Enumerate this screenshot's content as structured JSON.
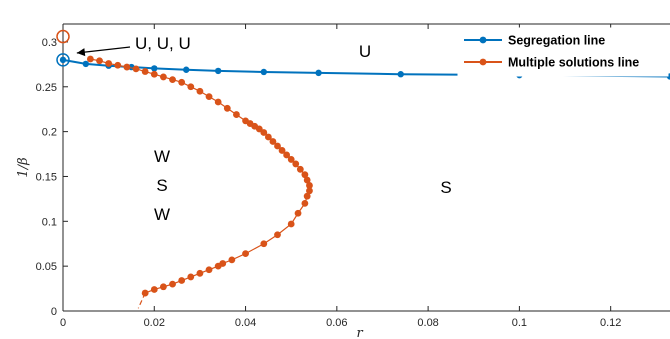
{
  "chart_data": {
    "type": "scatter",
    "xlabel": "r",
    "ylabel": "1/β",
    "xlim": [
      0,
      0.133
    ],
    "ylim": [
      0,
      0.32
    ],
    "x_ticks": [
      0,
      0.02,
      0.04,
      0.06,
      0.08,
      0.1,
      0.12
    ],
    "x_tick_labels": [
      "0",
      "0.02",
      "0.04",
      "0.06",
      "0.08",
      "0.1",
      "0.12"
    ],
    "y_ticks": [
      0,
      0.05,
      0.1,
      0.15,
      0.2,
      0.25,
      0.3
    ],
    "y_tick_labels": [
      "0",
      "0.05",
      "0.1",
      "0.15",
      "0.2",
      "0.25",
      "0.3"
    ],
    "grid": false,
    "legend_position": "top-right",
    "series": [
      {
        "name": "Segregation line",
        "color": "#0072BD",
        "marker": "circle",
        "x": [
          0,
          0.005,
          0.01,
          0.015,
          0.02,
          0.027,
          0.034,
          0.044,
          0.056,
          0.074,
          0.1,
          0.133
        ],
        "y": [
          0.28,
          0.2755,
          0.2735,
          0.272,
          0.2705,
          0.269,
          0.2677,
          0.2665,
          0.2655,
          0.264,
          0.263,
          0.2615
        ]
      },
      {
        "name": "Multiple solutions line",
        "color": "#D95319",
        "marker": "circle",
        "x": [
          0.006,
          0.008,
          0.01,
          0.012,
          0.014,
          0.016,
          0.018,
          0.02,
          0.022,
          0.024,
          0.026,
          0.028,
          0.03,
          0.032,
          0.034,
          0.036,
          0.038,
          0.04,
          0.041,
          0.042,
          0.043,
          0.044,
          0.045,
          0.046,
          0.047,
          0.048,
          0.049,
          0.05,
          0.051,
          0.052,
          0.053,
          0.0535,
          0.054,
          0.054,
          0.0535,
          0.053,
          0.0515,
          0.05,
          0.047,
          0.044,
          0.04,
          0.037,
          0.035,
          0.034,
          0.032,
          0.03,
          0.028,
          0.026,
          0.024,
          0.022,
          0.02,
          0.018
        ],
        "y": [
          0.281,
          0.279,
          0.276,
          0.274,
          0.272,
          0.27,
          0.267,
          0.264,
          0.261,
          0.258,
          0.255,
          0.25,
          0.245,
          0.239,
          0.233,
          0.226,
          0.219,
          0.212,
          0.209,
          0.206,
          0.203,
          0.199,
          0.194,
          0.189,
          0.184,
          0.179,
          0.174,
          0.169,
          0.164,
          0.158,
          0.152,
          0.146,
          0.14,
          0.134,
          0.128,
          0.12,
          0.109,
          0.097,
          0.085,
          0.075,
          0.064,
          0.057,
          0.053,
          0.05,
          0.046,
          0.042,
          0.038,
          0.034,
          0.03,
          0.027,
          0.024,
          0.02
        ],
        "dashed_extension": {
          "x": [
            0.018,
            0.0165
          ],
          "y": [
            0.02,
            0.003
          ]
        }
      }
    ],
    "hollow_markers": [
      {
        "x": 0,
        "y": 0.28,
        "color": "#0072BD"
      },
      {
        "x": 0,
        "y": 0.306,
        "color": "#D95319"
      }
    ],
    "annotations": {
      "top_left": {
        "text": "U, U, U",
        "arrow_to": {
          "x": 0.0015,
          "y": 0.291
        }
      },
      "top_region": "U",
      "left_region": [
        "W",
        "S",
        "W"
      ],
      "right_region": "S"
    }
  }
}
